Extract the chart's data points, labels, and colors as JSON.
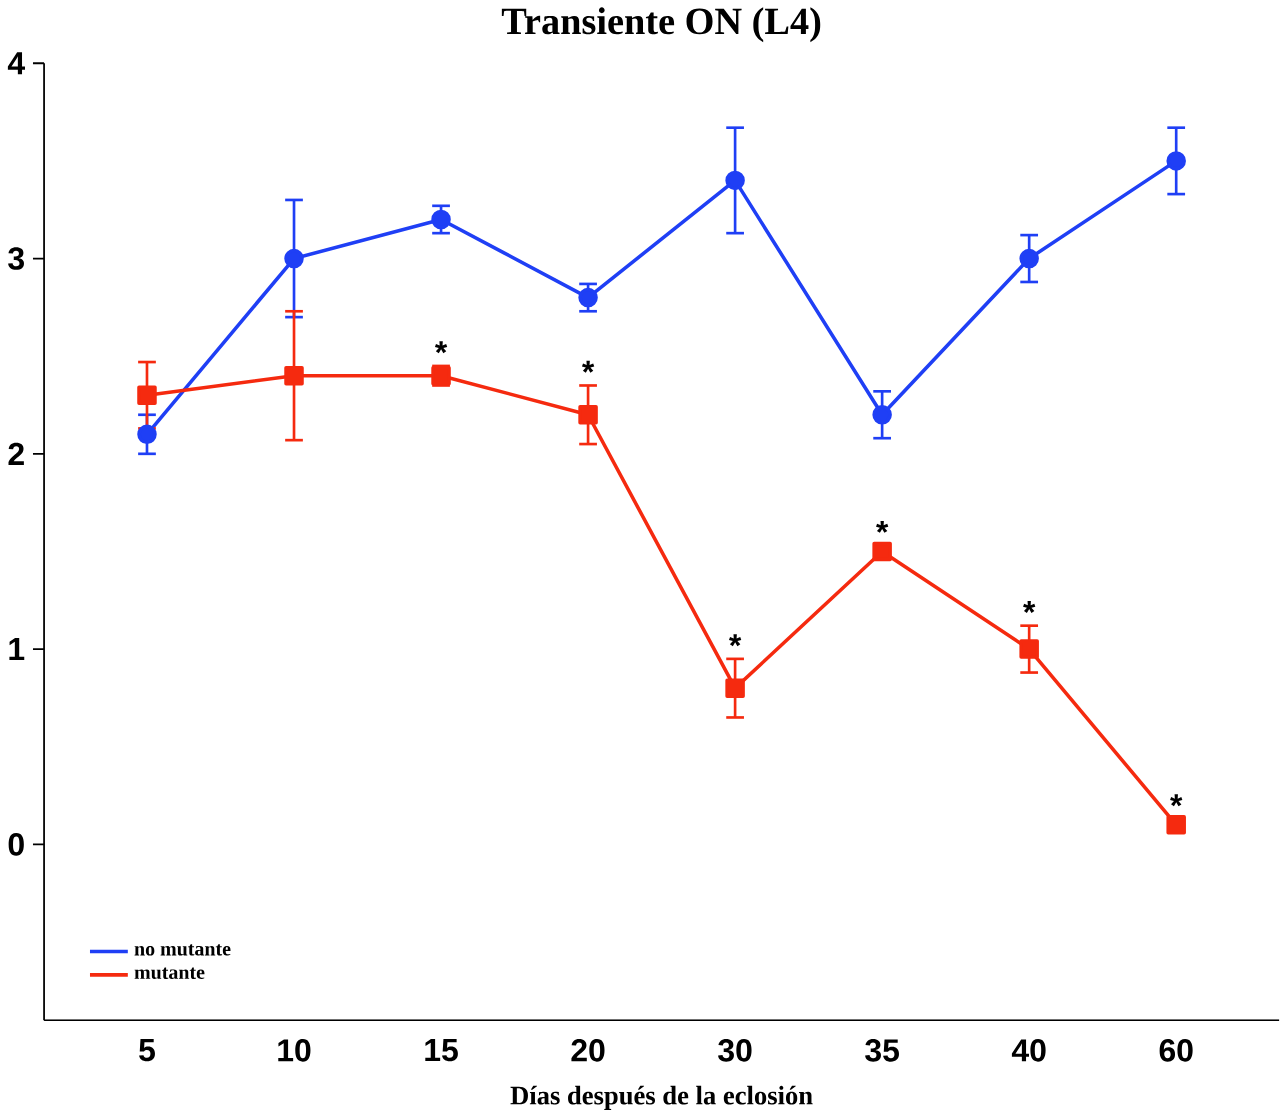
{
  "chart_data": {
    "type": "line",
    "title": "Transiente ON (L4)",
    "xlabel": "Días después de la eclosión",
    "categories": [
      "5",
      "10",
      "15",
      "20",
      "30",
      "35",
      "40",
      "60"
    ],
    "series": [
      {
        "name": "no mutante",
        "color": "#1f3ff5",
        "marker": "circle",
        "values": [
          2.1,
          3.0,
          3.2,
          2.8,
          3.4,
          2.2,
          3.0,
          3.5
        ],
        "errors": [
          0.1,
          0.3,
          0.07,
          0.07,
          0.27,
          0.12,
          0.12,
          0.17
        ]
      },
      {
        "name": "mutante",
        "color": "#f52a0f",
        "marker": "square",
        "values": [
          2.3,
          2.4,
          2.4,
          2.2,
          0.8,
          1.5,
          1.0,
          0.1
        ],
        "errors": [
          0.17,
          0.33,
          0.05,
          0.15,
          0.15,
          0.03,
          0.12,
          0.03
        ]
      }
    ],
    "annotations": [
      {
        "text": "*",
        "x": "15",
        "y": 2.4
      },
      {
        "text": "*",
        "x": "20",
        "y": 2.2
      },
      {
        "text": "*",
        "x": "30",
        "y": 0.8
      },
      {
        "text": "*",
        "x": "35",
        "y": 1.5
      },
      {
        "text": "*",
        "x": "40",
        "y": 1.0
      },
      {
        "text": "*",
        "x": "60",
        "y": 0.1
      }
    ],
    "ylim": [
      -0.9,
      4
    ],
    "yticks": [
      0,
      1,
      2,
      3,
      4
    ],
    "legend": "bottom left",
    "grid": false
  }
}
